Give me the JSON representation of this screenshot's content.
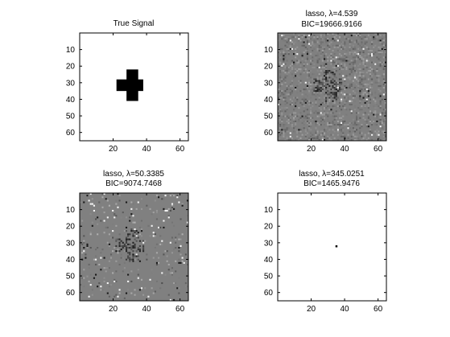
{
  "chart_data": [
    {
      "type": "heatmap",
      "title": "True Signal",
      "pattern": "cross",
      "colormap": "grayscale",
      "xlim": [
        0,
        65
      ],
      "ylim": [
        0,
        65
      ],
      "y_direction": "reversed",
      "xticks": [
        20,
        40,
        60
      ],
      "yticks": [
        10,
        20,
        30,
        40,
        50,
        60
      ],
      "signal": {
        "hbar": {
          "x": [
            22,
            38
          ],
          "y": [
            28,
            35
          ]
        },
        "vbar": {
          "x": [
            28,
            35
          ],
          "y": [
            22,
            41
          ]
        },
        "value_color": "#000000",
        "background_color": "#ffffff"
      }
    },
    {
      "type": "heatmap",
      "title": "lasso, λ=4.539",
      "subtitle": "BIC=19666.9166",
      "pattern": "noisy-cross",
      "colormap": "grayscale",
      "xlim": [
        0,
        65
      ],
      "ylim": [
        0,
        65
      ],
      "y_direction": "reversed",
      "xticks": [
        20,
        40,
        60
      ],
      "yticks": [
        10,
        20,
        30,
        40,
        50,
        60
      ],
      "noise_level": "high",
      "background_color": "#808080"
    },
    {
      "type": "heatmap",
      "title": "lasso, λ=50.3385",
      "subtitle": "BIC=9074.7468",
      "pattern": "noisy-cross",
      "colormap": "grayscale",
      "xlim": [
        0,
        65
      ],
      "ylim": [
        0,
        65
      ],
      "y_direction": "reversed",
      "xticks": [
        20,
        40,
        60
      ],
      "yticks": [
        10,
        20,
        30,
        40,
        50,
        60
      ],
      "noise_level": "medium",
      "background_color": "#808080"
    },
    {
      "type": "heatmap",
      "title": "lasso, λ=345.0251",
      "subtitle": "BIC=1465.9476",
      "pattern": "single-point",
      "colormap": "grayscale",
      "xlim": [
        0,
        65
      ],
      "ylim": [
        0,
        65
      ],
      "y_direction": "reversed",
      "xticks": [
        20,
        40,
        60
      ],
      "yticks": [
        10,
        20,
        30,
        40,
        50,
        60
      ],
      "point": [
        35,
        32
      ],
      "point_color": "#000000",
      "background_color": "#ffffff"
    }
  ]
}
